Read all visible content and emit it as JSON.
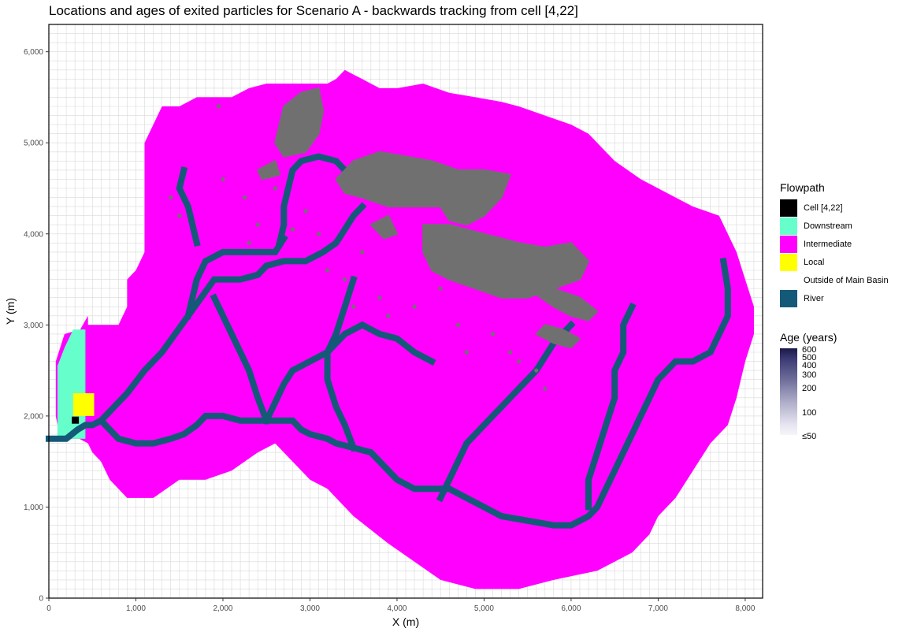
{
  "chart_data": {
    "type": "heatmap",
    "title": "Locations and ages of exited particles for Scenario A - backwards tracking from cell [4,22]",
    "xlabel": "X (m)",
    "ylabel": "Y (m)",
    "xlim": [
      0,
      8200
    ],
    "ylim": [
      0,
      6300
    ],
    "xticks": [
      0,
      1000,
      2000,
      3000,
      4000,
      5000,
      6000,
      7000,
      8000
    ],
    "xtick_labels": [
      "0",
      "1,000",
      "2,000",
      "3,000",
      "4,000",
      "5,000",
      "6,000",
      "7,000",
      "8,000"
    ],
    "yticks": [
      0,
      1000,
      2000,
      3000,
      4000,
      5000,
      6000
    ],
    "ytick_labels": [
      "0",
      "1,000",
      "2,000",
      "3,000",
      "4,000",
      "5,000",
      "6,000"
    ],
    "grid": true,
    "flowpath_legend": {
      "title": "Flowpath",
      "items": [
        {
          "label": "Cell [4,22]",
          "color": "#000000"
        },
        {
          "label": "Downstream",
          "color": "#66ffcc"
        },
        {
          "label": "Intermediate",
          "color": "#ff00ff"
        },
        {
          "label": "Local",
          "color": "#ffff00"
        },
        {
          "label": "Outside of Main Basin",
          "color": "#ffffff"
        },
        {
          "label": "River",
          "color": "#145a78"
        }
      ]
    },
    "age_legend": {
      "title": "Age (years)",
      "ticks": [
        {
          "value": 600,
          "label": "600"
        },
        {
          "value": 500,
          "label": "500"
        },
        {
          "value": 400,
          "label": "400"
        },
        {
          "value": 300,
          "label": "300"
        },
        {
          "value": 200,
          "label": "200"
        },
        {
          "value": 100,
          "label": "100"
        },
        {
          "value": 50,
          "label": "≤50"
        }
      ]
    },
    "basin_outline": [
      [
        100,
        1750
      ],
      [
        100,
        1900
      ],
      [
        80,
        2000
      ],
      [
        80,
        2600
      ],
      [
        180,
        2900
      ],
      [
        360,
        2950
      ],
      [
        450,
        3100
      ],
      [
        450,
        3000
      ],
      [
        800,
        3000
      ],
      [
        900,
        3200
      ],
      [
        900,
        3500
      ],
      [
        1000,
        3600
      ],
      [
        1100,
        3800
      ],
      [
        1100,
        4100
      ],
      [
        1100,
        4600
      ],
      [
        1100,
        5000
      ],
      [
        1200,
        5200
      ],
      [
        1300,
        5400
      ],
      [
        1500,
        5400
      ],
      [
        1700,
        5500
      ],
      [
        1900,
        5500
      ],
      [
        2100,
        5500
      ],
      [
        2300,
        5600
      ],
      [
        2500,
        5650
      ],
      [
        2700,
        5650
      ],
      [
        3000,
        5650
      ],
      [
        3200,
        5650
      ],
      [
        3300,
        5700
      ],
      [
        3400,
        5800
      ],
      [
        3500,
        5750
      ],
      [
        3600,
        5700
      ],
      [
        3700,
        5650
      ],
      [
        3800,
        5600
      ],
      [
        4000,
        5600
      ],
      [
        4300,
        5650
      ],
      [
        4600,
        5550
      ],
      [
        4900,
        5500
      ],
      [
        5200,
        5450
      ],
      [
        5400,
        5400
      ],
      [
        5700,
        5300
      ],
      [
        6000,
        5200
      ],
      [
        6200,
        5100
      ],
      [
        6500,
        4800
      ],
      [
        6800,
        4600
      ],
      [
        7000,
        4500
      ],
      [
        7200,
        4400
      ],
      [
        7400,
        4300
      ],
      [
        7700,
        4200
      ],
      [
        7900,
        3800
      ],
      [
        8000,
        3500
      ],
      [
        8100,
        3200
      ],
      [
        8100,
        2900
      ],
      [
        8000,
        2600
      ],
      [
        7900,
        2200
      ],
      [
        7800,
        1900
      ],
      [
        7600,
        1700
      ],
      [
        7400,
        1400
      ],
      [
        7200,
        1100
      ],
      [
        7000,
        900
      ],
      [
        6900,
        700
      ],
      [
        6700,
        500
      ],
      [
        6300,
        300
      ],
      [
        5800,
        200
      ],
      [
        5400,
        100
      ],
      [
        4900,
        100
      ],
      [
        4500,
        200
      ],
      [
        4200,
        400
      ],
      [
        3900,
        600
      ],
      [
        3500,
        900
      ],
      [
        3200,
        1200
      ],
      [
        3000,
        1300
      ],
      [
        2800,
        1500
      ],
      [
        2600,
        1700
      ],
      [
        2400,
        1600
      ],
      [
        2100,
        1400
      ],
      [
        1800,
        1300
      ],
      [
        1500,
        1300
      ],
      [
        1200,
        1100
      ],
      [
        900,
        1100
      ],
      [
        700,
        1300
      ],
      [
        600,
        1500
      ],
      [
        500,
        1600
      ],
      [
        450,
        1700
      ],
      [
        350,
        1750
      ],
      [
        100,
        1750
      ]
    ],
    "downstream_zone": [
      [
        100,
        1750
      ],
      [
        100,
        2550
      ],
      [
        180,
        2750
      ],
      [
        280,
        2950
      ],
      [
        420,
        2950
      ],
      [
        420,
        1750
      ]
    ],
    "local_zone": [
      [
        280,
        2000
      ],
      [
        280,
        2250
      ],
      [
        520,
        2250
      ],
      [
        520,
        2000
      ]
    ],
    "cell_marker": {
      "x": 300,
      "y": 1950
    },
    "rivers": [
      [
        [
          0,
          1750
        ],
        [
          200,
          1750
        ],
        [
          330,
          1850
        ],
        [
          420,
          1900
        ],
        [
          500,
          1900
        ],
        [
          600,
          1950
        ],
        [
          700,
          2050
        ],
        [
          900,
          2250
        ],
        [
          1100,
          2500
        ],
        [
          1300,
          2700
        ],
        [
          1450,
          2900
        ],
        [
          1600,
          3100
        ],
        [
          1750,
          3300
        ],
        [
          1900,
          3500
        ],
        [
          2050,
          3500
        ],
        [
          2200,
          3500
        ],
        [
          2400,
          3550
        ],
        [
          2500,
          3650
        ],
        [
          2700,
          3700
        ],
        [
          2950,
          3700
        ],
        [
          3150,
          3800
        ],
        [
          3300,
          3900
        ],
        [
          3400,
          4050
        ],
        [
          3500,
          4200
        ],
        [
          3600,
          4300
        ]
      ],
      [
        [
          600,
          1950
        ],
        [
          700,
          1850
        ],
        [
          800,
          1750
        ],
        [
          1000,
          1700
        ],
        [
          1200,
          1700
        ],
        [
          1400,
          1750
        ],
        [
          1550,
          1800
        ],
        [
          1700,
          1900
        ],
        [
          1800,
          2000
        ],
        [
          2000,
          2000
        ],
        [
          2200,
          1950
        ],
        [
          2500,
          1950
        ],
        [
          2800,
          1950
        ],
        [
          2900,
          1850
        ],
        [
          3000,
          1800
        ],
        [
          3200,
          1750
        ],
        [
          3300,
          1700
        ],
        [
          3500,
          1650
        ],
        [
          3700,
          1600
        ],
        [
          3800,
          1500
        ],
        [
          3900,
          1400
        ],
        [
          4000,
          1300
        ],
        [
          4200,
          1200
        ],
        [
          4400,
          1200
        ],
        [
          4600,
          1200
        ],
        [
          4800,
          1100
        ],
        [
          5000,
          1000
        ],
        [
          5200,
          900
        ],
        [
          5500,
          850
        ],
        [
          5800,
          800
        ],
        [
          6000,
          800
        ],
        [
          6200,
          900
        ],
        [
          6300,
          1000
        ],
        [
          6400,
          1200
        ],
        [
          6500,
          1400
        ],
        [
          6600,
          1600
        ],
        [
          6700,
          1800
        ],
        [
          6800,
          2000
        ],
        [
          6900,
          2200
        ],
        [
          7000,
          2400
        ],
        [
          7100,
          2500
        ],
        [
          7200,
          2600
        ],
        [
          7400,
          2600
        ],
        [
          7600,
          2700
        ],
        [
          7700,
          2900
        ],
        [
          7800,
          3100
        ],
        [
          7800,
          3400
        ],
        [
          7750,
          3700
        ]
      ],
      [
        [
          2500,
          1950
        ],
        [
          2600,
          2150
        ],
        [
          2700,
          2350
        ],
        [
          2800,
          2500
        ],
        [
          3000,
          2600
        ],
        [
          3200,
          2700
        ],
        [
          3400,
          2900
        ],
        [
          3600,
          3000
        ],
        [
          3800,
          2900
        ],
        [
          4000,
          2850
        ],
        [
          4200,
          2700
        ],
        [
          4400,
          2600
        ]
      ],
      [
        [
          3500,
          1650
        ],
        [
          3400,
          1900
        ],
        [
          3300,
          2100
        ],
        [
          3200,
          2400
        ],
        [
          3200,
          2700
        ],
        [
          3300,
          2900
        ],
        [
          3400,
          3200
        ],
        [
          3500,
          3500
        ]
      ],
      [
        [
          4500,
          1100
        ],
        [
          4600,
          1300
        ],
        [
          4700,
          1500
        ],
        [
          4800,
          1700
        ],
        [
          5000,
          1900
        ],
        [
          5200,
          2100
        ],
        [
          5400,
          2300
        ],
        [
          5600,
          2500
        ],
        [
          5800,
          2800
        ],
        [
          6000,
          3000
        ]
      ],
      [
        [
          1600,
          3100
        ],
        [
          1700,
          3500
        ],
        [
          1800,
          3700
        ],
        [
          2000,
          3800
        ],
        [
          2300,
          3800
        ],
        [
          2600,
          3800
        ],
        [
          2700,
          3950
        ]
      ],
      [
        [
          1700,
          3900
        ],
        [
          1650,
          4100
        ],
        [
          1600,
          4300
        ],
        [
          1500,
          4500
        ],
        [
          1550,
          4700
        ]
      ],
      [
        [
          2650,
          3900
        ],
        [
          2700,
          4100
        ],
        [
          2700,
          4300
        ],
        [
          2750,
          4500
        ],
        [
          2800,
          4700
        ],
        [
          2900,
          4800
        ],
        [
          3100,
          4850
        ],
        [
          3300,
          4800
        ],
        [
          3400,
          4700
        ]
      ],
      [
        [
          2500,
          1950
        ],
        [
          2400,
          2200
        ],
        [
          2300,
          2500
        ],
        [
          2200,
          2700
        ],
        [
          2100,
          2900
        ],
        [
          2000,
          3100
        ],
        [
          1900,
          3300
        ]
      ],
      [
        [
          6200,
          1000
        ],
        [
          6200,
          1300
        ],
        [
          6300,
          1600
        ],
        [
          6400,
          1900
        ],
        [
          6500,
          2200
        ],
        [
          6500,
          2500
        ],
        [
          6600,
          2700
        ],
        [
          6600,
          3000
        ],
        [
          6700,
          3200
        ]
      ]
    ],
    "particle_clusters": [
      [
        [
          2700,
          5400
        ],
        [
          2900,
          5550
        ],
        [
          3100,
          5600
        ],
        [
          3150,
          5350
        ],
        [
          3100,
          5100
        ],
        [
          2950,
          4900
        ],
        [
          2700,
          4850
        ],
        [
          2600,
          5000
        ],
        [
          2650,
          5200
        ]
      ],
      [
        [
          3300,
          4600
        ],
        [
          3500,
          4800
        ],
        [
          3800,
          4900
        ],
        [
          4100,
          4850
        ],
        [
          4400,
          4800
        ],
        [
          4700,
          4700
        ],
        [
          5000,
          4700
        ],
        [
          5300,
          4650
        ],
        [
          5200,
          4400
        ],
        [
          5000,
          4200
        ],
        [
          4800,
          4100
        ],
        [
          4600,
          4150
        ],
        [
          4500,
          4300
        ],
        [
          4200,
          4300
        ],
        [
          3900,
          4300
        ],
        [
          3600,
          4400
        ],
        [
          3400,
          4450
        ]
      ],
      [
        [
          4300,
          4100
        ],
        [
          4600,
          4100
        ],
        [
          5000,
          4000
        ],
        [
          5400,
          3900
        ],
        [
          5700,
          3850
        ],
        [
          6000,
          3900
        ],
        [
          6200,
          3700
        ],
        [
          6100,
          3500
        ],
        [
          5800,
          3400
        ],
        [
          5500,
          3300
        ],
        [
          5200,
          3300
        ],
        [
          4900,
          3400
        ],
        [
          4600,
          3500
        ],
        [
          4400,
          3600
        ],
        [
          4300,
          3800
        ]
      ],
      [
        [
          5500,
          3400
        ],
        [
          5800,
          3200
        ],
        [
          6000,
          3100
        ],
        [
          6200,
          3050
        ],
        [
          6300,
          3150
        ],
        [
          6100,
          3300
        ],
        [
          5800,
          3400
        ]
      ],
      [
        [
          5600,
          2900
        ],
        [
          5800,
          2800
        ],
        [
          6000,
          2750
        ],
        [
          6100,
          2850
        ],
        [
          5900,
          2950
        ],
        [
          5700,
          3000
        ]
      ],
      [
        [
          3700,
          4100
        ],
        [
          3900,
          4200
        ],
        [
          4000,
          4000
        ],
        [
          3850,
          3950
        ]
      ],
      [
        [
          2400,
          4700
        ],
        [
          2600,
          4800
        ],
        [
          2650,
          4650
        ],
        [
          2450,
          4600
        ]
      ]
    ],
    "particle_points": [
      [
        2250,
        4400
      ],
      [
        2400,
        4100
      ],
      [
        2800,
        4050
      ],
      [
        1400,
        4400
      ],
      [
        1500,
        4200
      ],
      [
        3100,
        4000
      ],
      [
        3400,
        3500
      ],
      [
        3800,
        3300
      ],
      [
        3900,
        3100
      ],
      [
        4200,
        3200
      ],
      [
        4700,
        3000
      ],
      [
        5100,
        2900
      ],
      [
        5300,
        2700
      ],
      [
        5600,
        2500
      ],
      [
        5700,
        2300
      ],
      [
        4500,
        3400
      ],
      [
        3200,
        3600
      ],
      [
        2600,
        4500
      ],
      [
        2000,
        4600
      ],
      [
        2300,
        3900
      ],
      [
        4800,
        2700
      ],
      [
        5400,
        2600
      ],
      [
        3600,
        3800
      ],
      [
        2950,
        4250
      ],
      [
        1950,
        5400
      ],
      [
        3500,
        3200
      ]
    ]
  }
}
